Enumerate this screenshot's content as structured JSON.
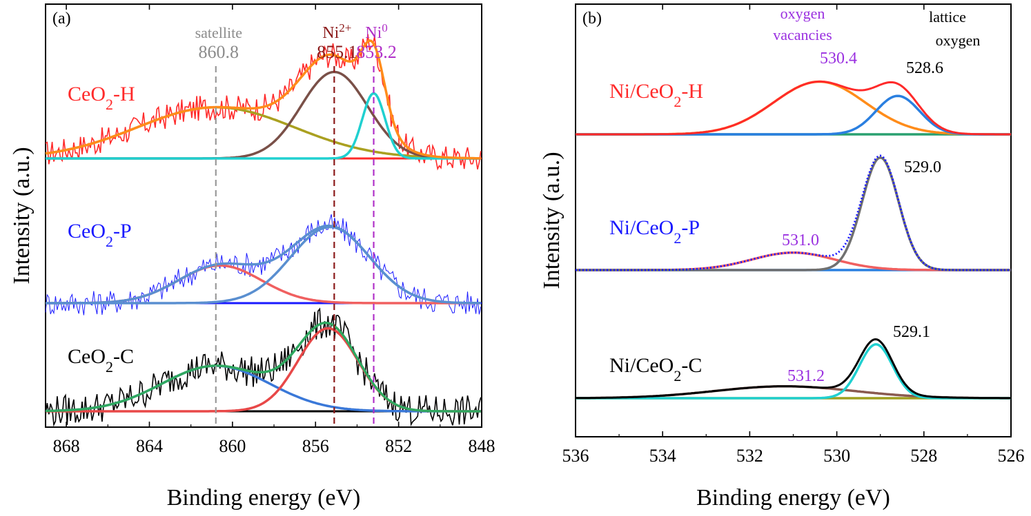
{
  "chart_data": [
    {
      "type": "line",
      "panel_label": "(a)",
      "xlabel": "Binding energy (eV)",
      "ylabel": "Intensity (a.u.)",
      "xlim": [
        869,
        848
      ],
      "x_ticks": [
        "868",
        "864",
        "860",
        "856",
        "852",
        "848"
      ],
      "x_tick_values": [
        868,
        864,
        860,
        856,
        852,
        848
      ],
      "reference_lines": [
        {
          "id": "satellite",
          "x": 860.8,
          "color": "#999999",
          "label_top": "satellite",
          "label_value": "860.8",
          "label_color": "#8c8c8c"
        },
        {
          "id": "ni2",
          "x": 855.1,
          "color": "#8b1a1a",
          "label_top": "Ni",
          "label_top_sup": "2+",
          "label_value": "855.1",
          "label_color": "#8b1a1a"
        },
        {
          "id": "ni0",
          "x": 853.2,
          "color": "#b030c8",
          "label_top": "Ni",
          "label_top_sup": "0",
          "label_value": "853.2",
          "label_color": "#b030c8"
        }
      ],
      "samples": [
        {
          "name_main": "CeO",
          "name_sub": "2",
          "name_suffix": "-H",
          "color": "#ff2a2a",
          "raw_color": "#ff2a2a",
          "components": [
            {
              "name": "satellite",
              "center": 860.8,
              "height": 0.55,
              "width": 3.8,
              "color": "#aaa020"
            },
            {
              "name": "Ni2+",
              "center": 855.1,
              "height": 0.93,
              "width": 1.6,
              "color": "#7a5048"
            },
            {
              "name": "Ni0",
              "center": 853.2,
              "height": 0.7,
              "width": 0.55,
              "color": "#20d0d0"
            }
          ],
          "envelope_color": "#ff8c1a"
        },
        {
          "name_main": "CeO",
          "name_sub": "2",
          "name_suffix": "-P",
          "color": "#1a1aff",
          "raw_color": "#1a1aff",
          "components": [
            {
              "name": "satellite",
              "center": 860.6,
              "height": 0.42,
              "width": 2.0,
              "color": "#f06060"
            },
            {
              "name": "Ni2+",
              "center": 855.3,
              "height": 0.85,
              "width": 1.9,
              "color": "#5a8fd0"
            }
          ],
          "envelope_color": "#5a8fd0"
        },
        {
          "name_main": "CeO",
          "name_sub": "2",
          "name_suffix": "-C",
          "color": "#000000",
          "raw_color": "#000000",
          "components": [
            {
              "name": "satellite",
              "center": 860.8,
              "height": 0.4,
              "width": 2.6,
              "color": "#3a78d8"
            },
            {
              "name": "Ni2+",
              "center": 855.4,
              "height": 0.73,
              "width": 1.45,
              "color": "#e84848"
            }
          ],
          "envelope_color": "#30a860"
        }
      ]
    },
    {
      "type": "line",
      "panel_label": "(b)",
      "xlabel": "Binding energy (eV)",
      "ylabel": "Intensity (a.u.)",
      "xlim": [
        536,
        526
      ],
      "x_ticks": [
        "536",
        "534",
        "532",
        "530",
        "528",
        "526"
      ],
      "x_tick_values": [
        536,
        534,
        532,
        530,
        528,
        526
      ],
      "annotations": [
        {
          "id": "ov-title-1",
          "text": "oxygen",
          "color": "#9a30e0"
        },
        {
          "id": "ov-title-2",
          "text": "vacancies",
          "color": "#9a30e0"
        },
        {
          "id": "lo-title-1",
          "text": "lattice",
          "color": "#000000"
        },
        {
          "id": "lo-title-2",
          "text": "oxygen",
          "color": "#000000"
        }
      ],
      "samples": [
        {
          "name_main": "Ni/CeO",
          "name_sub": "2",
          "name_suffix": "-H",
          "color": "#ff2a2a",
          "components": [
            {
              "name": "oxygen vacancies",
              "center": 530.4,
              "height": 0.85,
              "width": 1.05,
              "color": "#ff8c1a",
              "label": "530.4",
              "label_color": "#9a30e0"
            },
            {
              "name": "lattice oxygen",
              "center": 528.6,
              "height": 0.62,
              "width": 0.5,
              "color": "#2a7fe0",
              "label": "528.6",
              "label_color": "#000000"
            }
          ],
          "envelope_color": "#ff2a2a",
          "baseline_color": "#2aa070"
        },
        {
          "name_main": "Ni/CeO",
          "name_sub": "2",
          "name_suffix": "-P",
          "color": "#1a1aff",
          "components": [
            {
              "name": "oxygen vacancies",
              "center": 531.0,
              "height": 0.22,
              "width": 0.95,
              "color": "#f06060",
              "label": "531.0",
              "label_color": "#9a30e0"
            },
            {
              "name": "lattice oxygen",
              "center": 529.0,
              "height": 1.42,
              "width": 0.42,
              "color": "#707070",
              "label": "529.0",
              "label_color": "#000000"
            }
          ],
          "envelope_color": "#1a1aff",
          "baseline_color": "#2a80e0"
        },
        {
          "name_main": "Ni/CeO",
          "name_sub": "2",
          "name_suffix": "-C",
          "color": "#000000",
          "components": [
            {
              "name": "oxygen vacancies",
              "center": 531.2,
              "height": 0.15,
              "width": 1.6,
              "color": "#8a5a50",
              "label": "531.2",
              "label_color": "#9a30e0"
            },
            {
              "name": "lattice oxygen",
              "center": 529.1,
              "height": 0.68,
              "width": 0.38,
              "color": "#20d0d0",
              "label": "529.1",
              "label_color": "#000000"
            }
          ],
          "envelope_color": "#000000",
          "baseline_color": "#a0a020"
        }
      ]
    }
  ]
}
